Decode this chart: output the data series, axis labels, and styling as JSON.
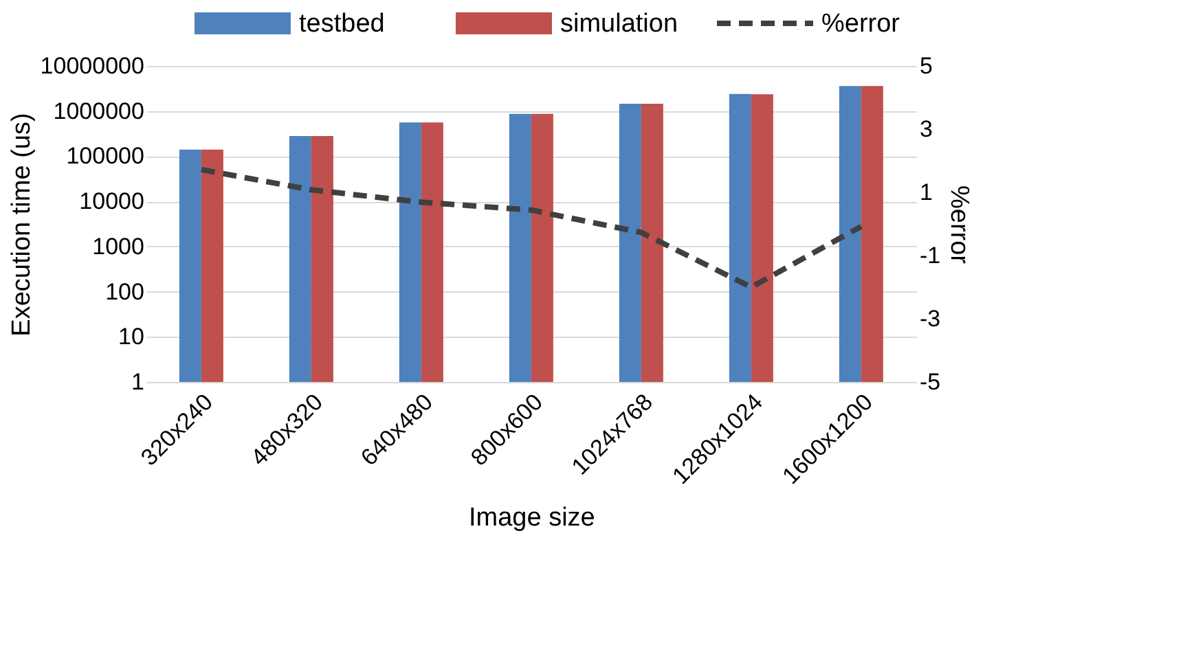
{
  "chart_data": {
    "type": "bar",
    "xlabel": "Image size",
    "ylabel": "Execution time (us)",
    "y2label": "%error",
    "categories": [
      "320x240",
      "480x320",
      "640x480",
      "800x600",
      "1024x768",
      "1280x1024",
      "1600x1200"
    ],
    "series": [
      {
        "name": "testbed",
        "color": "#4f81bd",
        "values": [
          140000,
          280000,
          560000,
          870000,
          1450000,
          2400000,
          3600000
        ]
      },
      {
        "name": "simulation",
        "color": "#c0504d",
        "values": [
          140000,
          280000,
          560000,
          870000,
          1450000,
          2350000,
          3600000
        ]
      },
      {
        "name": "%error",
        "type": "line",
        "axis": "y2",
        "color": "#404040",
        "line_style": "dashed",
        "marker": "none",
        "values": [
          1.72,
          1.08,
          0.69,
          0.44,
          -0.27,
          -2.0,
          -0.08
        ]
      }
    ],
    "log": "y",
    "ylim": [
      1,
      10000000
    ],
    "yticks": [
      1,
      10,
      100,
      1000,
      10000,
      100000,
      1000000,
      10000000
    ],
    "y2lim": [
      -5,
      5
    ],
    "y2ticks": [
      -5,
      -3,
      -1,
      1,
      3,
      5
    ],
    "grid": "y",
    "legend": "top"
  }
}
